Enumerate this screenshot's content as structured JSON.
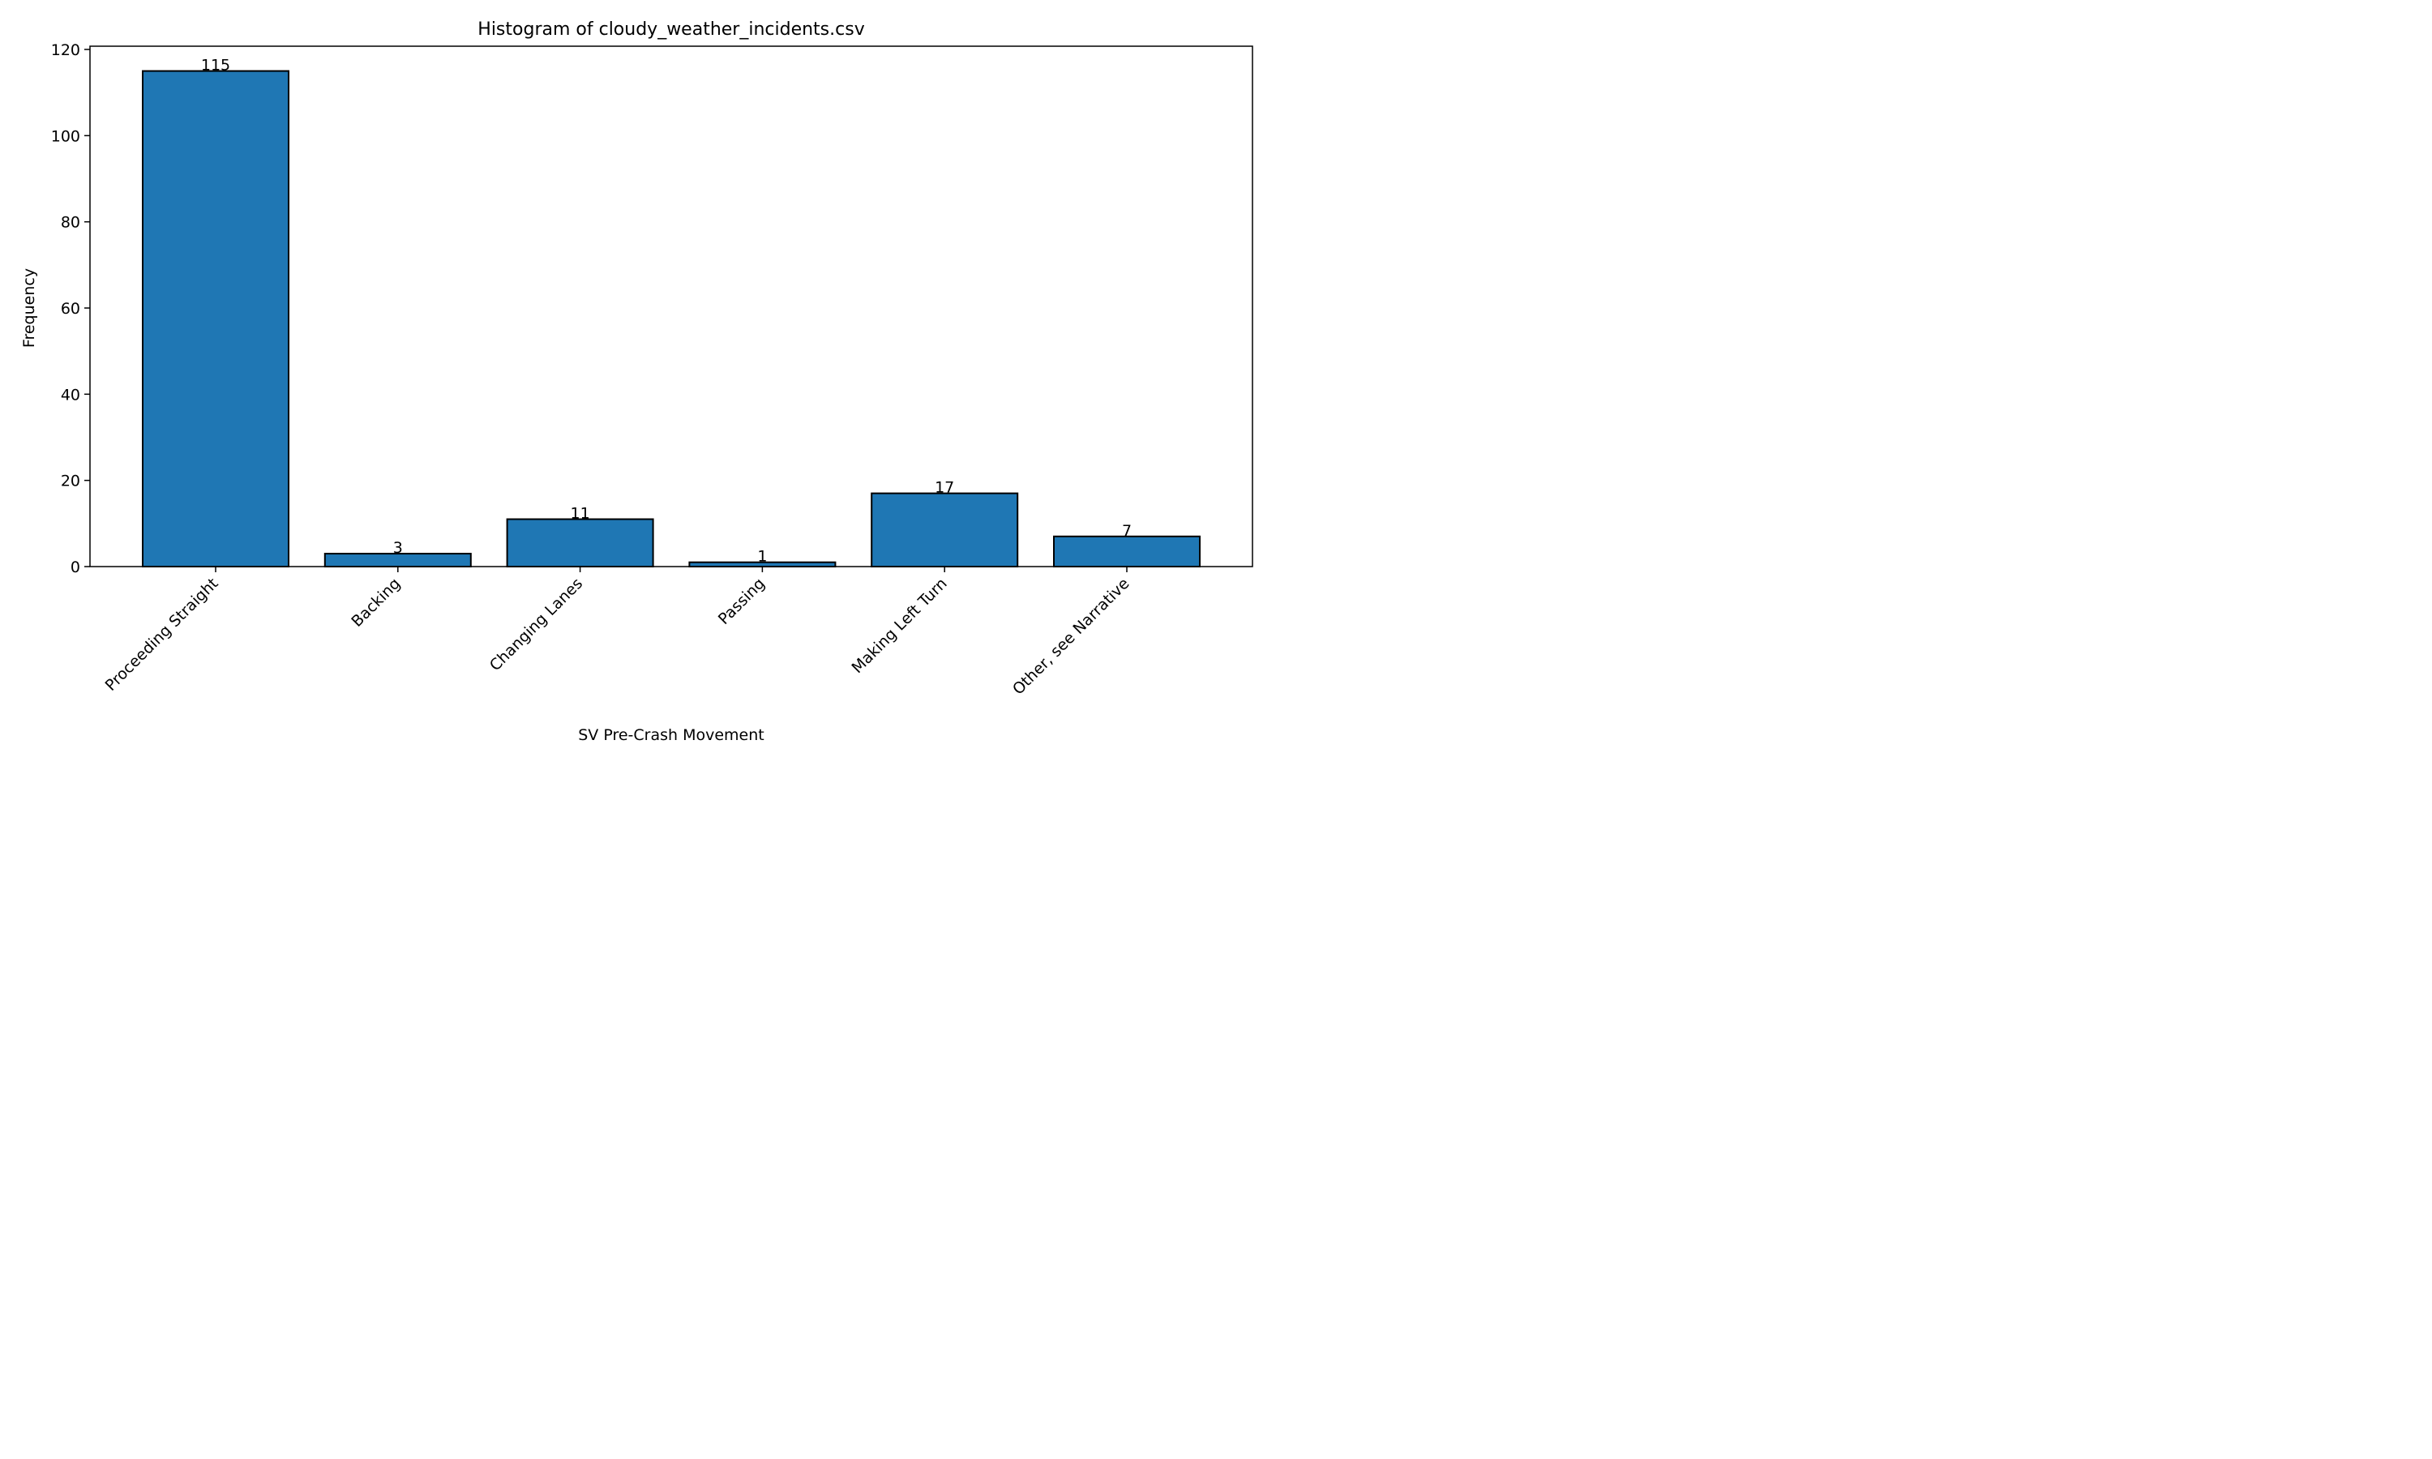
{
  "chart_data": {
    "type": "bar",
    "title": "Histogram of cloudy_weather_incidents.csv",
    "xlabel": "SV Pre-Crash Movement",
    "ylabel": "Frequency",
    "categories": [
      "Proceeding Straight",
      "Backing",
      "Changing Lanes",
      "Passing",
      "Making Left Turn",
      "Other, see Narrative"
    ],
    "values": [
      115,
      3,
      11,
      1,
      17,
      7
    ],
    "ylim": [
      0,
      120
    ],
    "yticks": [
      0,
      20,
      40,
      60,
      80,
      100,
      120
    ],
    "bar_color": "#1f77b4",
    "edge_color": "#000000",
    "grid": false
  }
}
